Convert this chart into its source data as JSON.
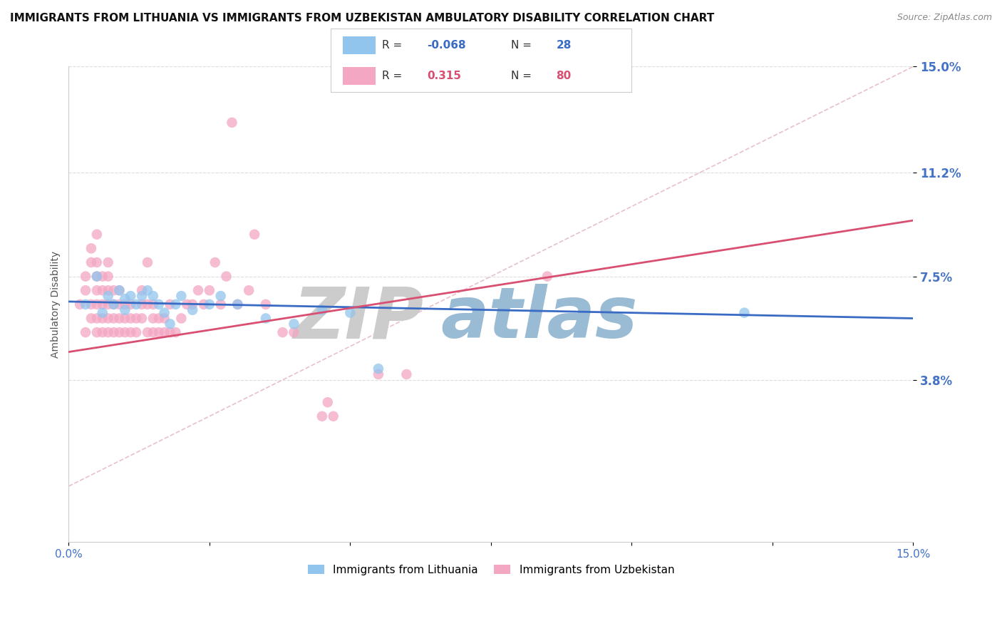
{
  "title": "IMMIGRANTS FROM LITHUANIA VS IMMIGRANTS FROM UZBEKISTAN AMBULATORY DISABILITY CORRELATION CHART",
  "source": "Source: ZipAtlas.com",
  "ylabel": "Ambulatory Disability",
  "xlabel": "",
  "legend_blue_r": "-0.068",
  "legend_blue_n": "28",
  "legend_pink_r": "0.315",
  "legend_pink_n": "80",
  "legend_blue_label": "Immigrants from Lithuania",
  "legend_pink_label": "Immigrants from Uzbekistan",
  "xmin": 0.0,
  "xmax": 0.15,
  "ymin": -0.02,
  "ymax": 0.15,
  "yticks": [
    0.038,
    0.075,
    0.112,
    0.15
  ],
  "ytick_labels": [
    "3.8%",
    "7.5%",
    "11.2%",
    "15.0%"
  ],
  "xticks": [
    0.0,
    0.025,
    0.05,
    0.075,
    0.1,
    0.125,
    0.15
  ],
  "xtick_labels": [
    "0.0%",
    "",
    "",
    "",
    "",
    "",
    "15.0%"
  ],
  "blue_color": "#92C5ED",
  "pink_color": "#F4A7C3",
  "trendline_blue_color": "#3A6BC4",
  "trendline_pink_color": "#D94F72",
  "watermark_zip": "ZIP",
  "watermark_atlas": "atlas",
  "background_color": "#FFFFFF",
  "blue_scatter": [
    [
      0.003,
      0.065
    ],
    [
      0.005,
      0.075
    ],
    [
      0.006,
      0.062
    ],
    [
      0.007,
      0.068
    ],
    [
      0.008,
      0.065
    ],
    [
      0.009,
      0.07
    ],
    [
      0.01,
      0.067
    ],
    [
      0.01,
      0.063
    ],
    [
      0.011,
      0.068
    ],
    [
      0.012,
      0.065
    ],
    [
      0.013,
      0.068
    ],
    [
      0.014,
      0.07
    ],
    [
      0.015,
      0.068
    ],
    [
      0.016,
      0.065
    ],
    [
      0.017,
      0.062
    ],
    [
      0.018,
      0.058
    ],
    [
      0.019,
      0.065
    ],
    [
      0.02,
      0.068
    ],
    [
      0.022,
      0.063
    ],
    [
      0.025,
      0.065
    ],
    [
      0.027,
      0.068
    ],
    [
      0.03,
      0.065
    ],
    [
      0.035,
      0.06
    ],
    [
      0.04,
      0.058
    ],
    [
      0.045,
      0.063
    ],
    [
      0.05,
      0.062
    ],
    [
      0.055,
      0.042
    ],
    [
      0.12,
      0.062
    ]
  ],
  "pink_scatter": [
    [
      0.002,
      0.065
    ],
    [
      0.003,
      0.055
    ],
    [
      0.003,
      0.07
    ],
    [
      0.003,
      0.075
    ],
    [
      0.004,
      0.06
    ],
    [
      0.004,
      0.065
    ],
    [
      0.004,
      0.08
    ],
    [
      0.004,
      0.085
    ],
    [
      0.005,
      0.055
    ],
    [
      0.005,
      0.06
    ],
    [
      0.005,
      0.065
    ],
    [
      0.005,
      0.07
    ],
    [
      0.005,
      0.075
    ],
    [
      0.005,
      0.08
    ],
    [
      0.005,
      0.09
    ],
    [
      0.006,
      0.055
    ],
    [
      0.006,
      0.06
    ],
    [
      0.006,
      0.065
    ],
    [
      0.006,
      0.07
    ],
    [
      0.006,
      0.075
    ],
    [
      0.007,
      0.055
    ],
    [
      0.007,
      0.06
    ],
    [
      0.007,
      0.065
    ],
    [
      0.007,
      0.07
    ],
    [
      0.007,
      0.075
    ],
    [
      0.007,
      0.08
    ],
    [
      0.008,
      0.055
    ],
    [
      0.008,
      0.06
    ],
    [
      0.008,
      0.065
    ],
    [
      0.008,
      0.07
    ],
    [
      0.009,
      0.055
    ],
    [
      0.009,
      0.06
    ],
    [
      0.009,
      0.065
    ],
    [
      0.009,
      0.07
    ],
    [
      0.01,
      0.055
    ],
    [
      0.01,
      0.06
    ],
    [
      0.01,
      0.065
    ],
    [
      0.011,
      0.055
    ],
    [
      0.011,
      0.06
    ],
    [
      0.011,
      0.065
    ],
    [
      0.012,
      0.055
    ],
    [
      0.012,
      0.06
    ],
    [
      0.013,
      0.06
    ],
    [
      0.013,
      0.065
    ],
    [
      0.013,
      0.07
    ],
    [
      0.014,
      0.055
    ],
    [
      0.014,
      0.065
    ],
    [
      0.014,
      0.08
    ],
    [
      0.015,
      0.055
    ],
    [
      0.015,
      0.06
    ],
    [
      0.015,
      0.065
    ],
    [
      0.016,
      0.055
    ],
    [
      0.016,
      0.06
    ],
    [
      0.017,
      0.055
    ],
    [
      0.017,
      0.06
    ],
    [
      0.018,
      0.055
    ],
    [
      0.018,
      0.065
    ],
    [
      0.019,
      0.055
    ],
    [
      0.02,
      0.06
    ],
    [
      0.021,
      0.065
    ],
    [
      0.022,
      0.065
    ],
    [
      0.023,
      0.07
    ],
    [
      0.024,
      0.065
    ],
    [
      0.025,
      0.07
    ],
    [
      0.026,
      0.08
    ],
    [
      0.027,
      0.065
    ],
    [
      0.028,
      0.075
    ],
    [
      0.029,
      0.13
    ],
    [
      0.03,
      0.065
    ],
    [
      0.032,
      0.07
    ],
    [
      0.033,
      0.09
    ],
    [
      0.035,
      0.065
    ],
    [
      0.038,
      0.055
    ],
    [
      0.04,
      0.055
    ],
    [
      0.045,
      0.025
    ],
    [
      0.046,
      0.03
    ],
    [
      0.047,
      0.025
    ],
    [
      0.055,
      0.04
    ],
    [
      0.06,
      0.04
    ],
    [
      0.085,
      0.075
    ]
  ],
  "dashed_line_color": "#E8C0CC",
  "grid_color": "#DDDDDD",
  "title_fontsize": 11,
  "axis_label_fontsize": 10,
  "tick_label_fontsize": 10,
  "tick_color": "#4472C4",
  "watermark_color_zip": "#CCCCCC",
  "watermark_color_atlas": "#99BBD4",
  "watermark_fontsize": 72
}
